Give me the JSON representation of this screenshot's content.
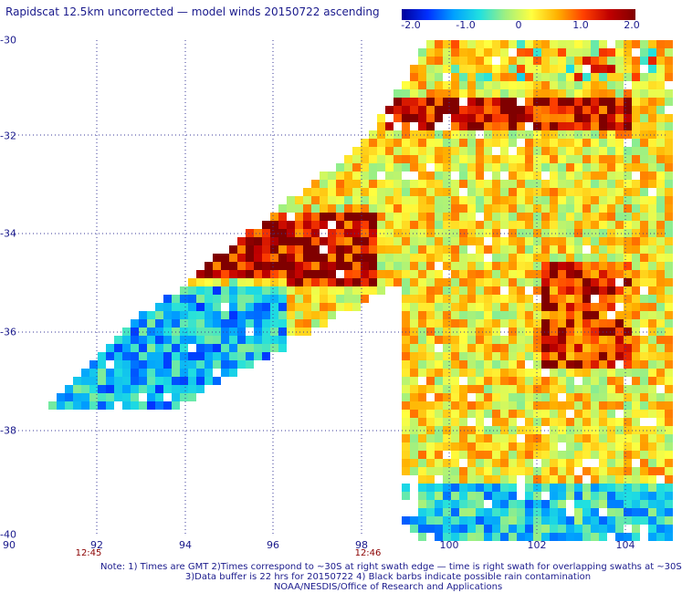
{
  "title": "Rapidscat 12.5km uncorrected — model winds 20150722 ascending",
  "colorbar": {
    "ticks": [
      "-2.0",
      "-1.0",
      "0",
      "1.0",
      "2.0"
    ],
    "min": -2.0,
    "max": 2.0
  },
  "map": {
    "lat_labels": [
      "-30",
      "-32",
      "-34",
      "-36",
      "-38",
      "-40"
    ],
    "lon_labels": [
      "90",
      "92",
      "94",
      "96",
      "98",
      "100",
      "102",
      "104"
    ],
    "time_labels": [
      "12:45",
      "12:46"
    ]
  },
  "note": {
    "line1": "Note: 1) Times are GMT 2)Times correspond to ~30S at right swath edge — time is right swath for overlapping swaths at ~30S",
    "line2": "3)Data buffer is 22 hrs for 20150722 4) Black barbs indicate possible rain contamination",
    "line3": "NOAA/NESDIS/Office of Research and Applications"
  }
}
